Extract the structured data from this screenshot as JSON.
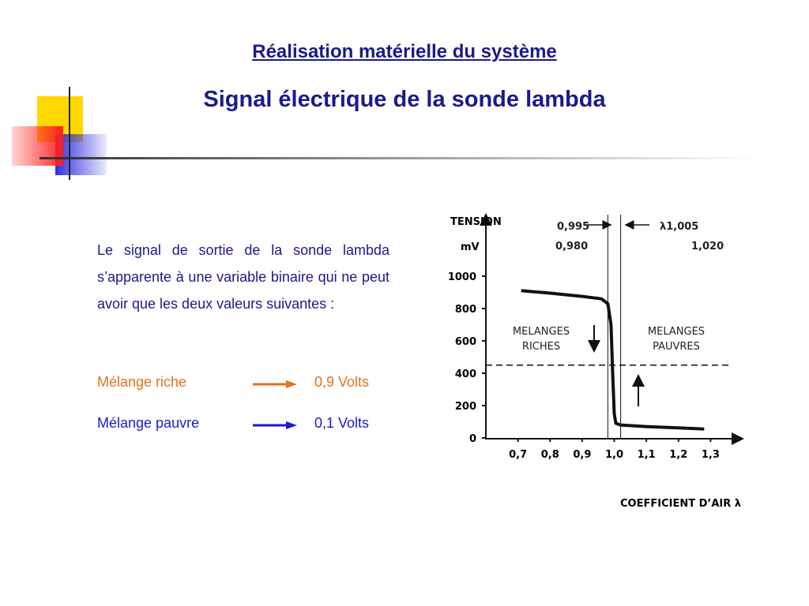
{
  "header": {
    "title": "Réalisation matérielle du système",
    "subtitle": "Signal électrique de la sonde lambda"
  },
  "body": {
    "paragraph": "Le signal de sortie de la sonde lambda s’apparente à une variable binaire qui ne peut avoir que les deux valeurs suivantes :",
    "items": [
      {
        "label": "Mélange riche",
        "value": "0,9 Volts"
      },
      {
        "label": "Mélange pauvre",
        "value": "0,1 Volts"
      }
    ]
  },
  "chart_data": {
    "type": "line",
    "y_label": "TENSION",
    "y_unit": "mV",
    "x_label": "COEFFICIENT D’AIR λ",
    "x": [
      0.71,
      0.8,
      0.9,
      0.96,
      0.98,
      0.99,
      0.995,
      1.0,
      1.005,
      1.02,
      1.1,
      1.2,
      1.28
    ],
    "values": [
      910,
      895,
      875,
      860,
      830,
      700,
      400,
      150,
      90,
      80,
      70,
      62,
      55
    ],
    "color": "#111111",
    "threshold": 450,
    "vlines": [
      0.98,
      1.02
    ],
    "annotations": [
      "0,995",
      "0,980",
      "λ1,005",
      "1,020",
      "MELANGES",
      "RICHES",
      "MELANGES",
      "PAUVRES"
    ],
    "xlim": [
      0.6,
      1.4
    ],
    "xticks": [
      {
        "value": 0.7,
        "label": "0,7"
      },
      {
        "value": 0.8,
        "label": "0,8"
      },
      {
        "value": 0.9,
        "label": "0,9"
      },
      {
        "value": 1.0,
        "label": "1,0"
      },
      {
        "value": 1.1,
        "label": "1,1"
      },
      {
        "value": 1.2,
        "label": "1,2"
      },
      {
        "value": 1.3,
        "label": "1,3"
      }
    ],
    "ylim": [
      0,
      1400
    ],
    "yticks": [
      0,
      200,
      400,
      600,
      800,
      1000
    ]
  }
}
